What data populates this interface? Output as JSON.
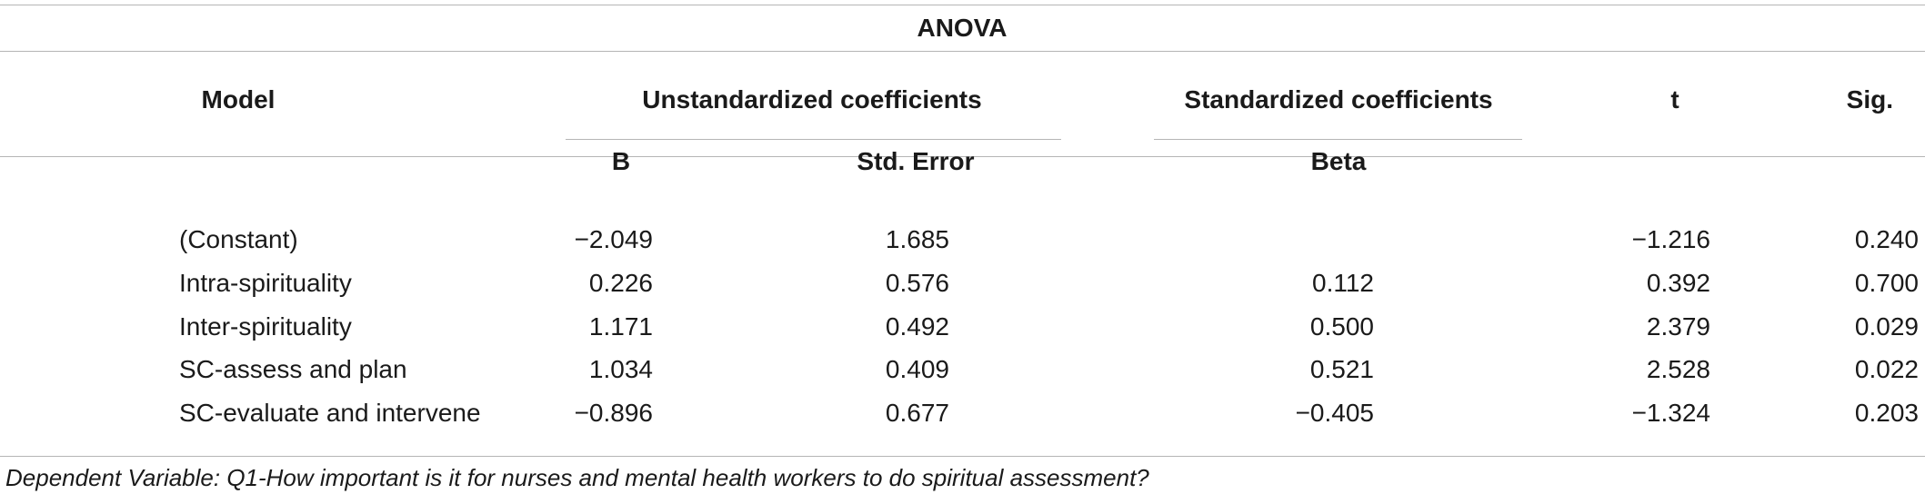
{
  "table": {
    "title": "ANOVA",
    "headers": {
      "model": "Model",
      "unstandardized": "Unstandardized coefficients",
      "standardized": "Standardized coefficients",
      "t": "t",
      "sig": "Sig.",
      "b": "B",
      "std_error": "Std. Error",
      "beta": "Beta"
    },
    "rows": [
      {
        "label": "(Constant)",
        "b": "−2.049",
        "std_error": "1.685",
        "beta": "",
        "t": "−1.216",
        "sig": "0.240"
      },
      {
        "label": "Intra-spirituality",
        "b": "0.226",
        "std_error": "0.576",
        "beta": "0.112",
        "t": "0.392",
        "sig": "0.700"
      },
      {
        "label": "Inter-spirituality",
        "b": "1.171",
        "std_error": "0.492",
        "beta": "0.500",
        "t": "2.379",
        "sig": "0.029"
      },
      {
        "label": "SC-assess and plan",
        "b": "1.034",
        "std_error": "0.409",
        "beta": "0.521",
        "t": "2.528",
        "sig": "0.022"
      },
      {
        "label": "SC-evaluate and intervene",
        "b": "−0.896",
        "std_error": "0.677",
        "beta": "−0.405",
        "t": "−1.324",
        "sig": "0.203"
      }
    ],
    "footnote": "Dependent Variable: Q1-How important is it for nurses and mental health workers to do spiritual assessment?"
  }
}
